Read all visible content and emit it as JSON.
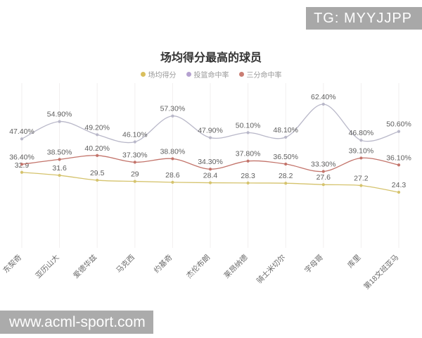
{
  "watermarks": {
    "telegram": "TG: MYYJJPP",
    "website": "www.acml-sport.com"
  },
  "chart_data": {
    "type": "line",
    "title": "场均得分最高的球员",
    "legend_position": "top",
    "grid": "vertical-lines-only",
    "categories": [
      "东契奇",
      "亚历山大",
      "爱德华兹",
      "马克西",
      "约基奇",
      "杰伦布朗",
      "莱昂纳德",
      "骑士米切尔",
      "字母哥",
      "库里",
      "第18文班亚马"
    ],
    "series": [
      {
        "name": "场均得分",
        "format": "plain",
        "color": "#d5c36d",
        "legend_color": "#d9bf5e",
        "values": [
          32.9,
          31.6,
          29.5,
          29,
          28.6,
          28.4,
          28.3,
          28.2,
          27.6,
          27.2,
          24.3
        ]
      },
      {
        "name": "投篮命中率",
        "format": "percent",
        "color": "#b9b8c9",
        "legend_color": "#b5a1d0",
        "values": [
          47.4,
          54.9,
          49.2,
          46.1,
          57.3,
          47.9,
          50.1,
          48.1,
          62.4,
          46.8,
          50.6
        ]
      },
      {
        "name": "三分命中率",
        "format": "percent",
        "color": "#c3746b",
        "legend_color": "#ca7d73",
        "values": [
          36.4,
          38.5,
          40.2,
          37.3,
          38.8,
          34.3,
          37.8,
          36.5,
          33.3,
          39.1,
          36.1
        ]
      }
    ],
    "value_axis": {
      "min": 24.3,
      "max": 62.4,
      "visible": false
    }
  }
}
